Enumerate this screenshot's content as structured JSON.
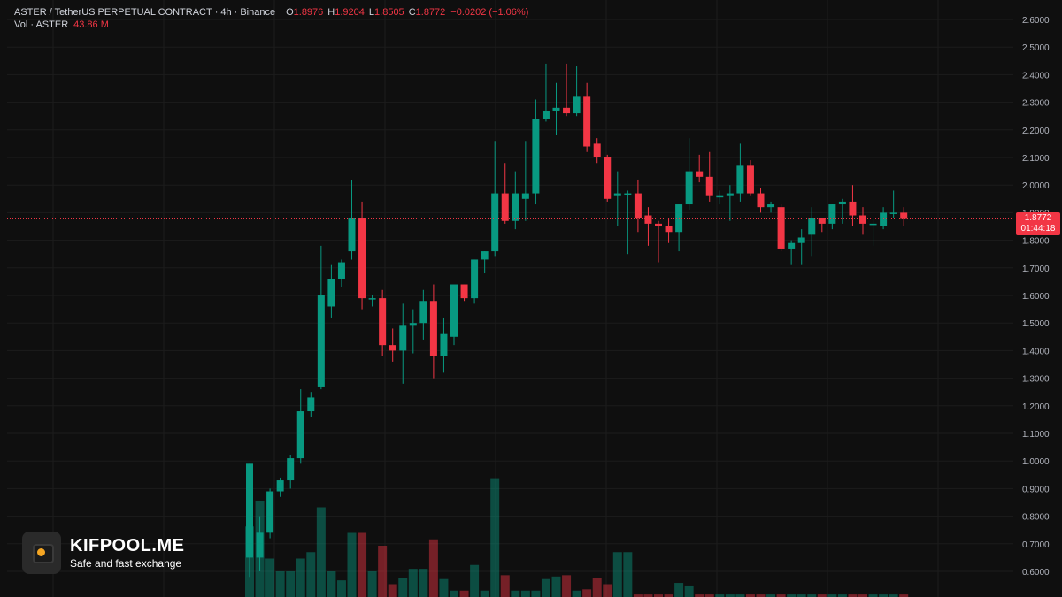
{
  "header": {
    "symbol": "ASTER / TetherUS PERPETUAL CONTRACT",
    "interval": "4h",
    "exchange": "Binance",
    "open_label": "O",
    "open": "1.8976",
    "high_label": "H",
    "high": "1.9204",
    "low_label": "L",
    "low": "1.8505",
    "close_label": "C",
    "close": "1.8772",
    "change": "−0.0202 (−1.06%)",
    "vol_label": "Vol · ASTER",
    "vol_value": "43.86 M"
  },
  "price_tag": {
    "price": "1.8772",
    "countdown": "01:44:18"
  },
  "brand": {
    "name": "KIFPOOL.ME",
    "tagline": "Safe and fast exchange"
  },
  "colors": {
    "up": "#089981",
    "down": "#f23645",
    "background": "#0f0f0f",
    "grid": "#1c1c1c",
    "axis_text": "#b2b5be"
  },
  "chart_data": {
    "type": "candlestick",
    "y_axis": {
      "min": 0.6,
      "max": 2.6,
      "step": 0.1,
      "position": "right",
      "ticks": [
        "2.6000",
        "2.5000",
        "2.4000",
        "2.3000",
        "2.2000",
        "2.1000",
        "2.0000",
        "1.9000",
        "1.8000",
        "1.7000",
        "1.6000",
        "1.5000",
        "1.4000",
        "1.3000",
        "1.2000",
        "1.1000",
        "1.0000",
        "0.9000",
        "0.8000",
        "0.7000",
        "0.6000"
      ]
    },
    "last_price": 1.8772,
    "candles": [
      {
        "o": 0.65,
        "h": 0.99,
        "l": 0.58,
        "c": 0.99
      },
      {
        "o": 0.65,
        "h": 0.8,
        "l": 0.6,
        "c": 0.74
      },
      {
        "o": 0.74,
        "h": 0.9,
        "l": 0.72,
        "c": 0.89
      },
      {
        "o": 0.89,
        "h": 0.94,
        "l": 0.87,
        "c": 0.93
      },
      {
        "o": 0.93,
        "h": 1.02,
        "l": 0.9,
        "c": 1.01
      },
      {
        "o": 1.01,
        "h": 1.26,
        "l": 0.99,
        "c": 1.18
      },
      {
        "o": 1.18,
        "h": 1.25,
        "l": 1.16,
        "c": 1.23
      },
      {
        "o": 1.27,
        "h": 1.78,
        "l": 1.26,
        "c": 1.6
      },
      {
        "o": 1.56,
        "h": 1.71,
        "l": 1.52,
        "c": 1.66
      },
      {
        "o": 1.66,
        "h": 1.73,
        "l": 1.63,
        "c": 1.72
      },
      {
        "o": 1.76,
        "h": 2.02,
        "l": 1.73,
        "c": 1.88
      },
      {
        "o": 1.88,
        "h": 1.94,
        "l": 1.55,
        "c": 1.59
      },
      {
        "o": 1.59,
        "h": 1.6,
        "l": 1.56,
        "c": 1.59
      },
      {
        "o": 1.59,
        "h": 1.62,
        "l": 1.38,
        "c": 1.42
      },
      {
        "o": 1.42,
        "h": 1.48,
        "l": 1.36,
        "c": 1.4
      },
      {
        "o": 1.4,
        "h": 1.57,
        "l": 1.28,
        "c": 1.49
      },
      {
        "o": 1.49,
        "h": 1.55,
        "l": 1.39,
        "c": 1.5
      },
      {
        "o": 1.5,
        "h": 1.62,
        "l": 1.44,
        "c": 1.58
      },
      {
        "o": 1.58,
        "h": 1.64,
        "l": 1.3,
        "c": 1.38
      },
      {
        "o": 1.38,
        "h": 1.52,
        "l": 1.32,
        "c": 1.46
      },
      {
        "o": 1.45,
        "h": 1.64,
        "l": 1.42,
        "c": 1.64
      },
      {
        "o": 1.64,
        "h": 1.64,
        "l": 1.58,
        "c": 1.59
      },
      {
        "o": 1.59,
        "h": 1.73,
        "l": 1.57,
        "c": 1.73
      },
      {
        "o": 1.73,
        "h": 1.76,
        "l": 1.68,
        "c": 1.76
      },
      {
        "o": 1.76,
        "h": 2.16,
        "l": 1.74,
        "c": 1.97
      },
      {
        "o": 1.97,
        "h": 2.08,
        "l": 1.86,
        "c": 1.87
      },
      {
        "o": 1.87,
        "h": 2.05,
        "l": 1.84,
        "c": 1.97
      },
      {
        "o": 1.95,
        "h": 2.16,
        "l": 1.87,
        "c": 1.97
      },
      {
        "o": 1.97,
        "h": 2.31,
        "l": 1.93,
        "c": 2.24
      },
      {
        "o": 2.24,
        "h": 2.44,
        "l": 2.23,
        "c": 2.27
      },
      {
        "o": 2.27,
        "h": 2.37,
        "l": 2.18,
        "c": 2.28
      },
      {
        "o": 2.28,
        "h": 2.44,
        "l": 2.25,
        "c": 2.26
      },
      {
        "o": 2.26,
        "h": 2.43,
        "l": 2.25,
        "c": 2.32
      },
      {
        "o": 2.32,
        "h": 2.37,
        "l": 2.12,
        "c": 2.14
      },
      {
        "o": 2.15,
        "h": 2.17,
        "l": 2.08,
        "c": 2.1
      },
      {
        "o": 2.1,
        "h": 2.11,
        "l": 1.94,
        "c": 1.95
      },
      {
        "o": 1.96,
        "h": 2.05,
        "l": 1.85,
        "c": 1.97
      },
      {
        "o": 1.97,
        "h": 1.98,
        "l": 1.75,
        "c": 1.97
      },
      {
        "o": 1.97,
        "h": 2.02,
        "l": 1.83,
        "c": 1.88
      },
      {
        "o": 1.89,
        "h": 1.92,
        "l": 1.78,
        "c": 1.86
      },
      {
        "o": 1.86,
        "h": 1.87,
        "l": 1.72,
        "c": 1.85
      },
      {
        "o": 1.85,
        "h": 1.88,
        "l": 1.79,
        "c": 1.83
      },
      {
        "o": 1.83,
        "h": 1.93,
        "l": 1.76,
        "c": 1.93
      },
      {
        "o": 1.93,
        "h": 2.17,
        "l": 1.91,
        "c": 2.05
      },
      {
        "o": 2.05,
        "h": 2.11,
        "l": 2.01,
        "c": 2.03
      },
      {
        "o": 2.03,
        "h": 2.12,
        "l": 1.94,
        "c": 1.96
      },
      {
        "o": 1.96,
        "h": 1.98,
        "l": 1.93,
        "c": 1.96
      },
      {
        "o": 1.96,
        "h": 2.0,
        "l": 1.87,
        "c": 1.97
      },
      {
        "o": 1.97,
        "h": 2.15,
        "l": 1.94,
        "c": 2.07
      },
      {
        "o": 2.07,
        "h": 2.09,
        "l": 1.96,
        "c": 1.97
      },
      {
        "o": 1.97,
        "h": 1.99,
        "l": 1.9,
        "c": 1.92
      },
      {
        "o": 1.92,
        "h": 1.94,
        "l": 1.9,
        "c": 1.93
      },
      {
        "o": 1.92,
        "h": 1.93,
        "l": 1.76,
        "c": 1.77
      },
      {
        "o": 1.77,
        "h": 1.8,
        "l": 1.71,
        "c": 1.79
      },
      {
        "o": 1.79,
        "h": 1.84,
        "l": 1.71,
        "c": 1.81
      },
      {
        "o": 1.82,
        "h": 1.92,
        "l": 1.74,
        "c": 1.88
      },
      {
        "o": 1.88,
        "h": 1.88,
        "l": 1.83,
        "c": 1.86
      },
      {
        "o": 1.86,
        "h": 1.93,
        "l": 1.84,
        "c": 1.93
      },
      {
        "o": 1.93,
        "h": 1.95,
        "l": 1.86,
        "c": 1.94
      },
      {
        "o": 1.94,
        "h": 2.0,
        "l": 1.85,
        "c": 1.89
      },
      {
        "o": 1.89,
        "h": 1.92,
        "l": 1.82,
        "c": 1.86
      },
      {
        "o": 1.86,
        "h": 1.88,
        "l": 1.78,
        "c": 1.86
      },
      {
        "o": 1.85,
        "h": 1.92,
        "l": 1.84,
        "c": 1.9
      },
      {
        "o": 1.9,
        "h": 1.98,
        "l": 1.88,
        "c": 1.9
      },
      {
        "o": 1.9,
        "h": 1.92,
        "l": 1.85,
        "c": 1.8772
      }
    ],
    "volume": [
      0.55,
      0.75,
      0.3,
      0.2,
      0.2,
      0.3,
      0.35,
      0.7,
      0.2,
      0.13,
      0.5,
      0.5,
      0.2,
      0.4,
      0.1,
      0.15,
      0.22,
      0.22,
      0.45,
      0.14,
      0.05,
      0.05,
      0.25,
      0.05,
      0.92,
      0.17,
      0.05,
      0.05,
      0.05,
      0.14,
      0.16,
      0.17,
      0.05,
      0.06,
      0.15,
      0.1,
      0.35,
      0.35,
      0.02,
      0.02,
      0.02,
      0.02,
      0.11,
      0.09,
      0.02,
      0.02,
      0.02,
      0.02,
      0.02,
      0.02,
      0.02,
      0.02,
      0.02,
      0.02,
      0.02,
      0.02,
      0.02,
      0.02,
      0.02,
      0.02,
      0.02,
      0.02,
      0.02,
      0.02,
      0.02
    ]
  }
}
